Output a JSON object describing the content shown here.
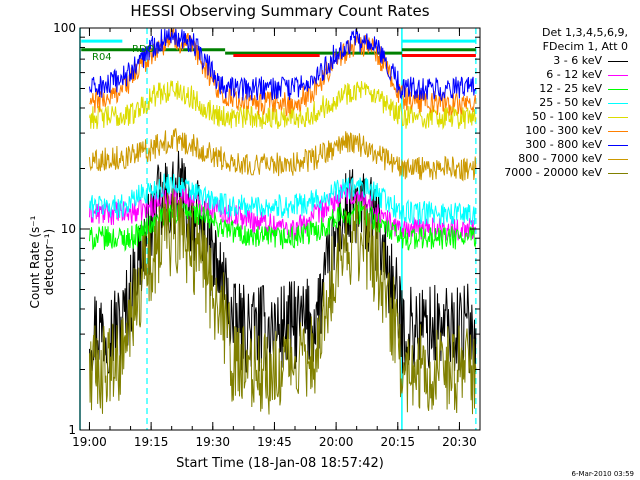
{
  "chart_data": {
    "type": "line",
    "title": "HESSI Observing Summary Count Rates",
    "xlabel": "Start Time (18-Jan-08 18:57:42)",
    "ylabel": "Count Rate (s⁻¹ detector⁻¹)",
    "xlim": [
      "18:57:42",
      "20:35:00"
    ],
    "ylim": [
      1,
      100
    ],
    "yscale": "log",
    "x_ticks": [
      "19:00",
      "19:15",
      "19:30",
      "19:45",
      "20:00",
      "20:15",
      "20:30"
    ],
    "y_ticks": [
      "1",
      "10",
      "100"
    ],
    "legend_header": [
      "Det 1,3,4,5,6,9,",
      "FDecim 1, Att 0"
    ],
    "legend_position": "right",
    "annotations": [
      "R04",
      "RDO"
    ],
    "vertical_markers": {
      "cyan_solid": [
        "18:57:42",
        "20:16:00"
      ],
      "cyan_dashed": [
        "19:14:00",
        "20:34:00"
      ]
    },
    "series": [
      {
        "name": "3 - 6 keV",
        "color": "#000000",
        "x": [
          "19:00",
          "19:05",
          "19:08",
          "19:12",
          "19:17",
          "19:22",
          "19:27",
          "19:33",
          "19:35",
          "19:45",
          "19:55",
          "19:58",
          "20:01",
          "20:05",
          "20:10",
          "20:14",
          "20:16",
          "20:24",
          "20:34"
        ],
        "y": [
          3.2,
          3.2,
          3.3,
          7,
          13,
          15,
          10,
          5,
          3.2,
          3.2,
          3.5,
          6,
          11,
          13,
          10,
          5,
          3.2,
          3.2,
          3.2
        ]
      },
      {
        "name": "6 - 12 keV",
        "color": "#ff00ff",
        "x": [
          "19:00",
          "19:10",
          "19:15",
          "19:20",
          "19:25",
          "19:33",
          "19:40",
          "19:50",
          "19:56",
          "20:02",
          "20:07",
          "20:12",
          "20:16",
          "20:25",
          "20:34"
        ],
        "y": [
          12,
          12,
          13,
          15,
          14,
          12,
          11,
          10,
          12,
          15,
          14,
          11,
          10,
          10,
          10
        ]
      },
      {
        "name": "12 - 25 keV",
        "color": "#00ff00",
        "x": [
          "19:00",
          "19:10",
          "19:14",
          "19:20",
          "19:26",
          "19:33",
          "19:40",
          "19:50",
          "19:56",
          "20:02",
          "20:07",
          "20:12",
          "20:16",
          "20:25",
          "20:34"
        ],
        "y": [
          9,
          9,
          10,
          12,
          12,
          10,
          9,
          9,
          10,
          12,
          12,
          10,
          9,
          9,
          9
        ]
      },
      {
        "name": "25 - 50 keV",
        "color": "#00ffff",
        "x": [
          "19:00",
          "19:08",
          "19:13",
          "19:20",
          "19:26",
          "19:33",
          "19:40",
          "19:50",
          "19:56",
          "20:02",
          "20:07",
          "20:12",
          "20:16",
          "20:25",
          "20:34"
        ],
        "y": [
          13,
          13,
          15,
          17,
          15,
          13,
          13,
          13,
          14,
          16,
          16,
          14,
          12,
          12,
          12
        ]
      },
      {
        "name": "50 - 100 keV",
        "color": "#dcdc00",
        "x": [
          "19:00",
          "19:05",
          "19:10",
          "19:15",
          "19:20",
          "19:25",
          "19:30",
          "19:33",
          "19:40",
          "19:50",
          "19:55",
          "20:00",
          "20:05",
          "20:10",
          "20:16",
          "20:25",
          "20:34"
        ],
        "y": [
          36,
          36,
          37,
          45,
          50,
          45,
          38,
          36,
          36,
          36,
          38,
          45,
          50,
          44,
          36,
          36,
          36
        ]
      },
      {
        "name": "100 - 300 keV",
        "color": "#ff7f00",
        "x": [
          "19:00",
          "19:05",
          "19:10",
          "19:15",
          "19:20",
          "19:25",
          "19:30",
          "19:33",
          "19:40",
          "19:50",
          "19:55",
          "20:00",
          "20:05",
          "20:10",
          "20:16",
          "20:25",
          "20:34"
        ],
        "y": [
          42,
          45,
          55,
          75,
          90,
          80,
          55,
          45,
          42,
          42,
          50,
          70,
          85,
          75,
          45,
          42,
          42
        ]
      },
      {
        "name": "300 - 800 keV",
        "color": "#0000ff",
        "x": [
          "19:00",
          "19:05",
          "19:10",
          "19:15",
          "19:20",
          "19:25",
          "19:30",
          "19:33",
          "19:40",
          "19:50",
          "19:55",
          "20:00",
          "20:05",
          "20:10",
          "20:16",
          "20:25",
          "20:34"
        ],
        "y": [
          50,
          52,
          60,
          80,
          95,
          85,
          60,
          50,
          50,
          50,
          55,
          75,
          88,
          78,
          50,
          50,
          50
        ]
      },
      {
        "name": "800 - 7000 keV",
        "color": "#cc9900",
        "x": [
          "19:00",
          "19:10",
          "19:15",
          "19:20",
          "19:25",
          "19:33",
          "19:40",
          "19:50",
          "19:56",
          "20:02",
          "20:07",
          "20:12",
          "20:16",
          "20:25",
          "20:34"
        ],
        "y": [
          22,
          23,
          25,
          28,
          26,
          22,
          21,
          21,
          23,
          27,
          26,
          22,
          20,
          20,
          20
        ]
      },
      {
        "name": "7000 - 20000 keV",
        "color": "#808000",
        "x": [
          "19:00",
          "19:05",
          "19:08",
          "19:12",
          "19:17",
          "19:22",
          "19:27",
          "19:33",
          "19:35",
          "19:45",
          "19:55",
          "19:58",
          "20:01",
          "20:05",
          "20:10",
          "20:14",
          "20:16",
          "20:24",
          "20:34"
        ],
        "y": [
          2,
          2,
          2.2,
          5,
          9,
          10,
          7,
          3.5,
          2,
          2,
          2.4,
          5,
          8,
          9,
          7,
          3.5,
          2,
          2,
          2
        ]
      }
    ],
    "reference_lines": [
      {
        "color": "#00ffff",
        "segments": [
          [
            "18:58",
            "19:08",
            86
          ],
          [
            "20:16",
            "20:34",
            86
          ]
        ]
      },
      {
        "color": "#008000",
        "segments": [
          [
            "18:58",
            "19:33",
            78
          ],
          [
            "19:33",
            "20:16",
            75
          ],
          [
            "20:16",
            "20:34",
            78
          ]
        ]
      },
      {
        "color": "#ff0000",
        "segments": [
          [
            "19:35",
            "19:56",
            73
          ],
          [
            "20:16",
            "20:34",
            73
          ]
        ]
      }
    ]
  },
  "footer": "6-Mar-2010 03:59"
}
